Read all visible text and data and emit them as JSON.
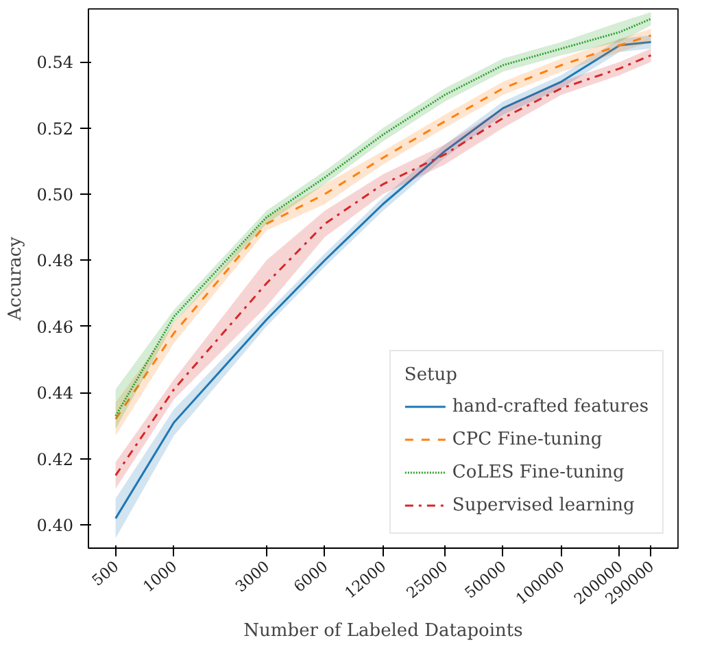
{
  "chart_data": {
    "type": "line",
    "xlabel": "Number of Labeled Datapoints",
    "ylabel": "Accuracy",
    "legend_title": "Setup",
    "x": [
      500,
      1000,
      3000,
      6000,
      12000,
      25000,
      50000,
      100000,
      200000,
      290000
    ],
    "log": "x",
    "xlim": [
      362,
      400000
    ],
    "xticks": [
      500,
      1000,
      3000,
      6000,
      12000,
      25000,
      50000,
      100000,
      200000,
      290000
    ],
    "ylim": [
      0.393,
      0.556
    ],
    "yticks": [
      {
        "value": 0.4,
        "label": "0.40"
      },
      {
        "value": 0.42,
        "label": "0.42"
      },
      {
        "value": 0.44,
        "label": "0.44"
      },
      {
        "value": 0.46,
        "label": "0.46"
      },
      {
        "value": 0.48,
        "label": "0.48"
      },
      {
        "value": 0.5,
        "label": "0.50"
      },
      {
        "value": 0.52,
        "label": "0.52"
      },
      {
        "value": 0.54,
        "label": "0.54"
      }
    ],
    "grid": false,
    "legend": "bottom right",
    "series": [
      {
        "name": "hand-crafted features",
        "color": "#1f77b4",
        "line_style": "solid",
        "values": [
          0.402,
          0.431,
          0.462,
          0.48,
          0.497,
          0.513,
          0.526,
          0.534,
          0.545,
          0.546
        ],
        "lower": [
          0.396,
          0.427,
          0.46,
          0.478,
          0.495,
          0.511,
          0.524,
          0.532,
          0.543,
          0.544
        ],
        "upper": [
          0.408,
          0.435,
          0.464,
          0.482,
          0.499,
          0.515,
          0.528,
          0.536,
          0.547,
          0.548
        ]
      },
      {
        "name": "CPC Fine-tuning",
        "color": "#ff7f0e",
        "line_style": "dashed",
        "values": [
          0.432,
          0.458,
          0.491,
          0.5,
          0.511,
          0.522,
          0.532,
          0.539,
          0.545,
          0.548
        ],
        "lower": [
          0.427,
          0.455,
          0.489,
          0.497,
          0.509,
          0.52,
          0.53,
          0.537,
          0.543,
          0.546
        ],
        "upper": [
          0.437,
          0.461,
          0.493,
          0.503,
          0.513,
          0.524,
          0.534,
          0.541,
          0.547,
          0.55
        ]
      },
      {
        "name": "CoLES Fine-tuning",
        "color": "#2ca02c",
        "line_style": "dotted",
        "values": [
          0.433,
          0.463,
          0.493,
          0.505,
          0.518,
          0.53,
          0.539,
          0.544,
          0.549,
          0.553
        ],
        "lower": [
          0.429,
          0.461,
          0.491,
          0.503,
          0.516,
          0.528,
          0.537,
          0.542,
          0.546,
          0.551
        ],
        "upper": [
          0.441,
          0.465,
          0.495,
          0.507,
          0.52,
          0.532,
          0.541,
          0.546,
          0.552,
          0.555
        ]
      },
      {
        "name": "Supervised learning",
        "color": "#d62728",
        "line_style": "dashdot",
        "values": [
          0.415,
          0.441,
          0.473,
          0.491,
          0.503,
          0.512,
          0.523,
          0.532,
          0.538,
          0.542
        ],
        "lower": [
          0.411,
          0.438,
          0.466,
          0.487,
          0.5,
          0.509,
          0.52,
          0.53,
          0.536,
          0.54
        ],
        "upper": [
          0.419,
          0.444,
          0.48,
          0.495,
          0.506,
          0.515,
          0.526,
          0.534,
          0.54,
          0.544
        ]
      }
    ]
  }
}
